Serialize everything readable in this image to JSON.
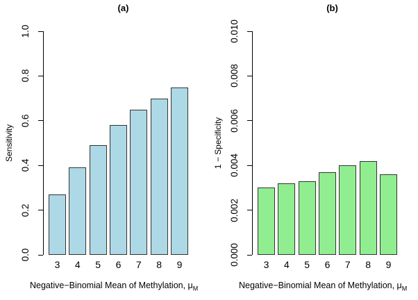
{
  "figure_title": "",
  "chart_data": [
    {
      "type": "bar",
      "panel": "a",
      "title": "(a)",
      "categories": [
        "3",
        "4",
        "5",
        "6",
        "7",
        "8",
        "9"
      ],
      "values": [
        0.27,
        0.39,
        0.49,
        0.58,
        0.65,
        0.7,
        0.75
      ],
      "ylabel": "Sensitivity",
      "xlabel": "Negative−Binomial Mean of Methylation, μM",
      "xlabel_main": "Negative−Binomial Mean of Methylation, μ",
      "xlabel_sub": "M",
      "ylim": [
        0.0,
        1.0
      ],
      "yticks": [
        0.0,
        0.2,
        0.4,
        0.6,
        0.8,
        1.0
      ],
      "ytick_labels": [
        "0.0",
        "0.2",
        "0.4",
        "0.6",
        "0.8",
        "1.0"
      ],
      "bar_color": "#ADD8E6",
      "bar_border": "#333333",
      "grid": false,
      "legend_position": "none"
    },
    {
      "type": "bar",
      "panel": "b",
      "title": "(b)",
      "categories": [
        "3",
        "4",
        "5",
        "6",
        "7",
        "8",
        "9"
      ],
      "values": [
        0.003,
        0.0032,
        0.0033,
        0.0037,
        0.004,
        0.0042,
        0.0036
      ],
      "ylabel": "1 − Specificity",
      "xlabel": "Negative−Binomial Mean of Methylation, μM",
      "xlabel_main": "Negative−Binomial Mean of Methylation, μ",
      "xlabel_sub": "M",
      "ylim": [
        0.0,
        0.01
      ],
      "yticks": [
        0.0,
        0.002,
        0.004,
        0.006,
        0.008,
        0.01
      ],
      "ytick_labels": [
        "0.000",
        "0.002",
        "0.004",
        "0.006",
        "0.008",
        "0.010"
      ],
      "bar_color": "#90EE90",
      "bar_border": "#333333",
      "grid": false,
      "legend_position": "none"
    }
  ]
}
